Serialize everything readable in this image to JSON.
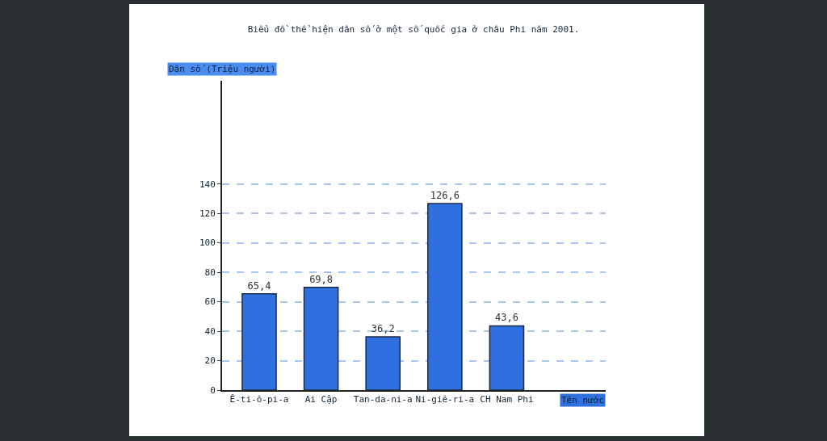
{
  "chart_data": {
    "type": "bar",
    "title": "Biểu đồ thể hiện dân số ở một số quốc gia ở châu Phi năm 2001.",
    "ylabel": "Dân số (Triệu người)",
    "xlabel": "Tên nước",
    "categories": [
      "Ê-ti-ô-pi-a",
      "Ai Cập",
      "Tan-da-ni-a",
      "Ni-giê-ri-a",
      "CH Nam Phi"
    ],
    "values": [
      65.4,
      69.8,
      36.2,
      126.6,
      43.6
    ],
    "value_labels": [
      "65,4",
      "69,8",
      "36,2",
      "126,6",
      "43,6"
    ],
    "color": "#2f6fe0",
    "ylim": [
      0,
      210
    ],
    "yticks": [
      0,
      20,
      40,
      60,
      80,
      100,
      120,
      140
    ],
    "grid": "y"
  }
}
